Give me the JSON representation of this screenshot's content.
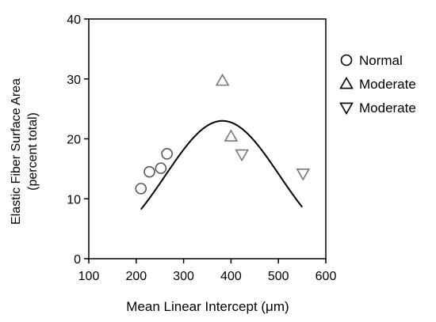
{
  "chart_data": {
    "type": "scatter",
    "title": "",
    "xlabel": "Mean Linear Intercept (μm)",
    "ylabel": [
      "Elastic Fiber Surface Area",
      "(percent total)"
    ],
    "xlim": [
      100,
      600
    ],
    "ylim": [
      0,
      40
    ],
    "xticks": [
      100,
      200,
      300,
      400,
      500,
      600
    ],
    "yticks": [
      0,
      10,
      20,
      30,
      40
    ],
    "grid": false,
    "legend_position": "right",
    "series": [
      {
        "name": "Normal",
        "marker": "circle",
        "color": "#555555",
        "points": [
          [
            210,
            11.7
          ],
          [
            228,
            14.5
          ],
          [
            252,
            15.1
          ],
          [
            265,
            17.5
          ]
        ]
      },
      {
        "name": "Moderate",
        "marker": "triangle-up",
        "color": "#777777",
        "points": [
          [
            382,
            29.7
          ],
          [
            400,
            20.4
          ]
        ]
      },
      {
        "name": "Moderate",
        "marker": "triangle-down",
        "color": "#777777",
        "points": [
          [
            423,
            17.4
          ],
          [
            552,
            14.2
          ]
        ]
      }
    ],
    "fit_curve": {
      "type": "gaussian",
      "color": "#000000",
      "x_range": [
        210,
        550
      ],
      "peak_x": 382,
      "peak_y": 23.0,
      "width": 120
    }
  }
}
